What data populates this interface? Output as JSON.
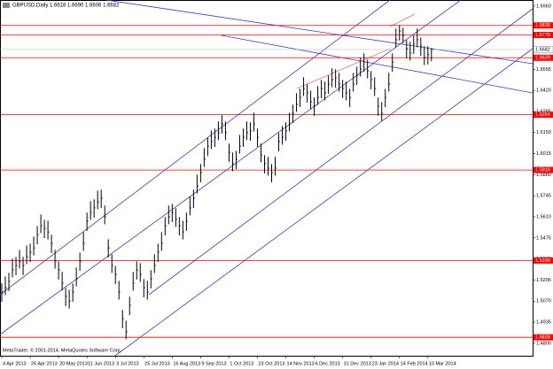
{
  "chart_data": {
    "type": "ohlc",
    "title": "GBPUSD,Daily 1.6618 1.6690 1.6606 1.6682",
    "footer": "MetaTrader, © 2001-2014, MetaQuotes Software Corp.",
    "color": "#000000",
    "xlim": [
      -0.5,
      149.5
    ],
    "xticks": [
      {
        "value": 0,
        "label": "4 Apr 2013"
      },
      {
        "value": 8,
        "label": "26 Apr 2013"
      },
      {
        "value": 16,
        "label": "20 May 2013"
      },
      {
        "value": 24,
        "label": "11 Jun 2013"
      },
      {
        "value": 32,
        "label": "3 Jul 2013"
      },
      {
        "value": 40,
        "label": "25 Jul 2013"
      },
      {
        "value": 48,
        "label": "16 Aug 2013"
      },
      {
        "value": 56,
        "label": "9 Sep 2013"
      },
      {
        "value": 64,
        "label": "1 Oct 2013"
      },
      {
        "value": 72,
        "label": "23 Oct 2013"
      },
      {
        "value": 80,
        "label": "14 Nov 2013"
      },
      {
        "value": 88,
        "label": "6 Dec 2013"
      },
      {
        "value": 96,
        "label": "31 Dec 2013"
      },
      {
        "value": 104,
        "label": "23 Jan 2014"
      },
      {
        "value": 112,
        "label": "14 Feb 2014"
      },
      {
        "value": 120,
        "label": "10 Mar 2014"
      }
    ],
    "ylim": [
      1.472,
      1.6999
    ],
    "yticks": [
      {
        "value": 1.696,
        "label": "1.6960"
      },
      {
        "value": 1.6825,
        "label": "1.6825"
      },
      {
        "value": 1.669,
        "label": "1.6690"
      },
      {
        "value": 1.6555,
        "label": "1.6555"
      },
      {
        "value": 1.642,
        "label": "1.6420"
      },
      {
        "value": 1.6285,
        "label": "1.6285"
      },
      {
        "value": 1.615,
        "label": "1.6150"
      },
      {
        "value": 1.6015,
        "label": "1.6015"
      },
      {
        "value": 1.588,
        "label": "1.5880"
      },
      {
        "value": 1.5745,
        "label": "1.5745"
      },
      {
        "value": 1.561,
        "label": "1.5610"
      },
      {
        "value": 1.5475,
        "label": "1.5475"
      },
      {
        "value": 1.534,
        "label": "1.5340"
      },
      {
        "value": 1.5205,
        "label": "1.5205"
      },
      {
        "value": 1.507,
        "label": "1.5070"
      },
      {
        "value": 1.4935,
        "label": "1.4935"
      },
      {
        "value": 1.48,
        "label": "1.4800"
      }
    ],
    "levels": [
      {
        "value": 1.6836,
        "label": "1.6836"
      },
      {
        "value": 1.6775,
        "label": "1.6775"
      },
      {
        "value": 1.6629,
        "label": "1.6629"
      },
      {
        "value": 1.6264,
        "label": "1.6264"
      },
      {
        "value": 1.591,
        "label": "1.5910"
      },
      {
        "value": 1.533,
        "label": "1.5330"
      },
      {
        "value": 1.4838,
        "label": "1.4838"
      }
    ],
    "level_color": "#ff0000",
    "current_price": {
      "value": 1.6682,
      "label": "1.6682"
    },
    "high": [
      1.5183,
      1.5228,
      1.5251,
      1.5342,
      1.5353,
      1.5398,
      1.5353,
      1.5427,
      1.5438,
      1.5483,
      1.5551,
      1.5625,
      1.5591,
      1.5585,
      1.5495,
      1.5398,
      1.5325,
      1.5257,
      1.5155,
      1.5143,
      1.5183,
      1.5285,
      1.5381,
      1.5512,
      1.5637,
      1.571,
      1.5722,
      1.5778,
      1.5784,
      1.5682,
      1.5466,
      1.537,
      1.5296,
      1.52,
      1.5013,
      1.4945,
      1.5098,
      1.5257,
      1.5325,
      1.5313,
      1.5211,
      1.52,
      1.5268,
      1.537,
      1.5438,
      1.5512,
      1.5608,
      1.5682,
      1.5693,
      1.5665,
      1.5608,
      1.5585,
      1.5637,
      1.5739,
      1.5784,
      1.588,
      1.5948,
      1.605,
      1.6118,
      1.6164,
      1.6175,
      1.6221,
      1.626,
      1.6221,
      1.6079,
      1.6022,
      1.6033,
      1.6135,
      1.6175,
      1.6221,
      1.6215,
      1.6277,
      1.6175,
      1.6079,
      1.6005,
      1.5994,
      1.5948,
      1.5994,
      1.6147,
      1.6192,
      1.6215,
      1.6277,
      1.6328,
      1.6402,
      1.643,
      1.6504,
      1.6459,
      1.6419,
      1.6374,
      1.6447,
      1.6487,
      1.6476,
      1.6515,
      1.6561,
      1.6555,
      1.6532,
      1.6487,
      1.6476,
      1.643,
      1.6532,
      1.6572,
      1.6629,
      1.6657,
      1.6617,
      1.6544,
      1.6504,
      1.6374,
      1.6345,
      1.643,
      1.6532,
      1.6657,
      1.6816,
      1.6836,
      1.6821,
      1.6742,
      1.6731,
      1.6771,
      1.6816,
      1.6759,
      1.6702,
      1.6703,
      1.669
    ],
    "low": [
      1.5066,
      1.5108,
      1.5134,
      1.5222,
      1.5236,
      1.5278,
      1.5236,
      1.5307,
      1.5321,
      1.5363,
      1.5434,
      1.5505,
      1.5474,
      1.5465,
      1.5378,
      1.5278,
      1.5208,
      1.5137,
      1.5038,
      1.5023,
      1.5066,
      1.5165,
      1.5264,
      1.5392,
      1.552,
      1.559,
      1.5605,
      1.5658,
      1.5667,
      1.5562,
      1.5349,
      1.525,
      1.5179,
      1.508,
      1.4896,
      1.4825,
      1.4981,
      1.5137,
      1.5208,
      1.5193,
      1.5094,
      1.508,
      1.5151,
      1.525,
      1.5321,
      1.5392,
      1.5491,
      1.5562,
      1.5576,
      1.5545,
      1.5491,
      1.5465,
      1.552,
      1.5619,
      1.5667,
      1.576,
      1.5831,
      1.593,
      1.6001,
      1.6044,
      1.6058,
      1.6101,
      1.6143,
      1.6101,
      1.5962,
      1.5902,
      1.5916,
      1.6015,
      1.6058,
      1.6101,
      1.6098,
      1.6157,
      1.6058,
      1.5959,
      1.5888,
      1.5874,
      1.5831,
      1.5874,
      1.603,
      1.6072,
      1.6098,
      1.6157,
      1.6211,
      1.6282,
      1.6313,
      1.6384,
      1.6342,
      1.6299,
      1.6257,
      1.6327,
      1.637,
      1.6356,
      1.6398,
      1.6441,
      1.6438,
      1.6412,
      1.637,
      1.6356,
      1.6313,
      1.6412,
      1.6455,
      1.6509,
      1.654,
      1.6497,
      1.6427,
      1.6384,
      1.6257,
      1.6225,
      1.6313,
      1.6412,
      1.654,
      1.6696,
      1.6739,
      1.6724,
      1.6625,
      1.6611,
      1.6654,
      1.6696,
      1.6642,
      1.6582,
      1.6586,
      1.6606
    ],
    "close": [
      1.5128,
      1.5156,
      1.5196,
      1.527,
      1.5298,
      1.5326,
      1.5298,
      1.5355,
      1.5383,
      1.5411,
      1.5496,
      1.5553,
      1.5536,
      1.5513,
      1.544,
      1.5326,
      1.527,
      1.5185,
      1.51,
      1.5071,
      1.5128,
      1.5213,
      1.5326,
      1.544,
      1.5582,
      1.5638,
      1.5667,
      1.5706,
      1.5729,
      1.561,
      1.5411,
      1.5298,
      1.5241,
      1.5128,
      1.4958,
      1.4873,
      1.5043,
      1.5185,
      1.527,
      1.5241,
      1.5156,
      1.5128,
      1.5213,
      1.5298,
      1.5383,
      1.544,
      1.5553,
      1.561,
      1.5638,
      1.5593,
      1.5553,
      1.5513,
      1.5582,
      1.5667,
      1.5729,
      1.5808,
      1.5893,
      1.5978,
      1.6063,
      1.6092,
      1.612,
      1.6149,
      1.6205,
      1.6149,
      1.6024,
      1.595,
      1.5978,
      1.6063,
      1.612,
      1.6149,
      1.616,
      1.6205,
      1.612,
      1.6007,
      1.595,
      1.5922,
      1.5893,
      1.5922,
      1.6092,
      1.612,
      1.616,
      1.6205,
      1.6273,
      1.633,
      1.6375,
      1.6432,
      1.6404,
      1.6347,
      1.6319,
      1.6375,
      1.6432,
      1.6404,
      1.646,
      1.6489,
      1.65,
      1.646,
      1.6432,
      1.6404,
      1.6375,
      1.646,
      1.6517,
      1.6557,
      1.6602,
      1.6545,
      1.6489,
      1.6432,
      1.6319,
      1.6273,
      1.6375,
      1.646,
      1.6602,
      1.6744,
      1.6801,
      1.6772,
      1.6687,
      1.6659,
      1.6716,
      1.6744,
      1.6704,
      1.663,
      1.6648,
      1.6682
    ]
  }
}
